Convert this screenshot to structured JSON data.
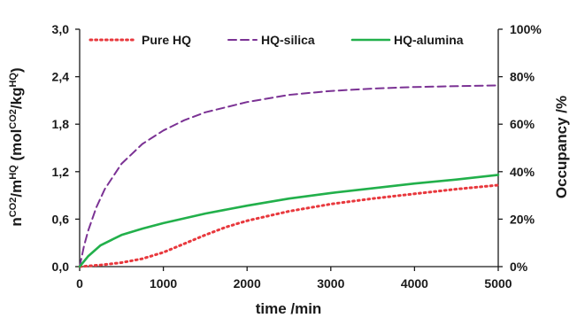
{
  "chart_data": {
    "type": "line",
    "title": "",
    "xlabel": "time /min",
    "ylabel": "nᶜᴼ²/mᴴᵠ (molᶜᴼ²/kgᴴᵠ)",
    "ylabel_parts": {
      "n": "n",
      "n_sup": "CO2",
      "sep": "/m",
      "sep_sup": "HQ",
      "unit_open": " (mol",
      "unit_sup1": "CO2",
      "unit_mid": "/kg",
      "unit_sup2": "HQ",
      "unit_close": ")"
    },
    "y2label": "Occupancy /%",
    "xlim": [
      0,
      5000
    ],
    "ylim": [
      0,
      3.0
    ],
    "y2lim": [
      0,
      100
    ],
    "xticks": [
      0,
      1000,
      2000,
      3000,
      4000,
      5000
    ],
    "xtick_labels": [
      "0",
      "1000",
      "2000",
      "3000",
      "4000",
      "5000"
    ],
    "yticks": [
      0,
      0.6,
      1.2,
      1.8,
      2.4,
      3.0
    ],
    "ytick_labels": [
      "0,0",
      "0,6",
      "1,2",
      "1,8",
      "2,4",
      "3,0"
    ],
    "y2ticks": [
      0,
      20,
      40,
      60,
      80,
      100
    ],
    "y2tick_labels": [
      "0%",
      "20%",
      "40%",
      "60%",
      "80%",
      "100%"
    ],
    "grid": false,
    "legend_position": "top",
    "series": [
      {
        "name": "Pure HQ",
        "color": "#e8383d",
        "style": "dotted",
        "x": [
          0,
          250,
          500,
          750,
          1000,
          1250,
          1500,
          1750,
          2000,
          2500,
          3000,
          3500,
          4000,
          4500,
          5000
        ],
        "y": [
          0,
          0.02,
          0.05,
          0.1,
          0.18,
          0.29,
          0.4,
          0.5,
          0.58,
          0.7,
          0.79,
          0.86,
          0.92,
          0.98,
          1.03
        ]
      },
      {
        "name": "HQ-silica",
        "color": "#7b3294",
        "style": "dashed",
        "x": [
          0,
          50,
          100,
          200,
          300,
          500,
          750,
          1000,
          1250,
          1500,
          2000,
          2500,
          3000,
          3500,
          4000,
          4500,
          5000
        ],
        "y": [
          0,
          0.25,
          0.45,
          0.75,
          0.98,
          1.3,
          1.55,
          1.72,
          1.85,
          1.95,
          2.08,
          2.17,
          2.22,
          2.25,
          2.27,
          2.28,
          2.29
        ]
      },
      {
        "name": "HQ-alumina",
        "color": "#22b04b",
        "style": "solid",
        "x": [
          0,
          100,
          250,
          500,
          750,
          1000,
          1250,
          1500,
          2000,
          2500,
          3000,
          3500,
          4000,
          4500,
          5000
        ],
        "y": [
          0,
          0.13,
          0.27,
          0.4,
          0.48,
          0.55,
          0.61,
          0.67,
          0.77,
          0.86,
          0.93,
          0.99,
          1.05,
          1.1,
          1.16
        ]
      }
    ]
  }
}
